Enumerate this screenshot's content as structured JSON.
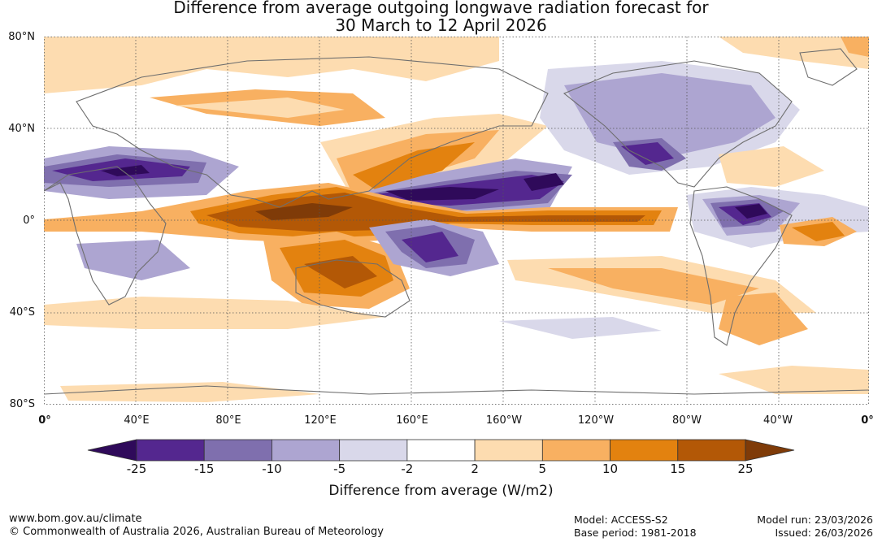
{
  "title": {
    "line1": "Difference from average outgoing longwave radiation forecast for",
    "line2": "30 March to 12 April 2026"
  },
  "map": {
    "lat_labels": [
      "80°N",
      "40°N",
      "0°",
      "40°S",
      "80°S"
    ],
    "lon_labels": [
      "0°",
      "40°E",
      "80°E",
      "120°E",
      "160°E",
      "160°W",
      "120°W",
      "80°W",
      "40°W",
      "0°"
    ]
  },
  "colorbar": {
    "ticks": [
      "-25",
      "-15",
      "-10",
      "-5",
      "-2",
      "2",
      "5",
      "10",
      "15",
      "25"
    ],
    "colors": [
      "#2f0a5a",
      "#54278f",
      "#7f6fae",
      "#ada5d1",
      "#d9d8ea",
      "#ffffff",
      "#fddcb0",
      "#f8b061",
      "#e3820f",
      "#b35806",
      "#7f3b08"
    ],
    "label": "Difference from average (W/m2)"
  },
  "footer": {
    "website": "www.bom.gov.au/climate",
    "copyright": "© Commonwealth of Australia 2026, Australian Bureau of Meteorology",
    "model": "Model: ACCESS-S2",
    "base_period": "Base period: 1981-2018",
    "model_run": "Model run: 23/03/2026",
    "issued": "Issued: 26/03/2026"
  }
}
